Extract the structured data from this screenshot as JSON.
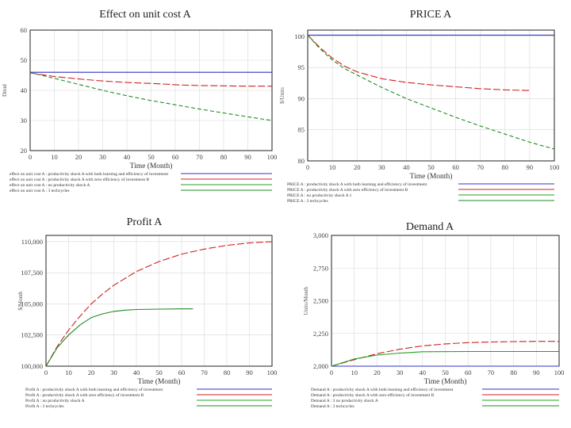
{
  "chart_data": [
    {
      "type": "line",
      "title": "Effect on unit cost A",
      "xlabel": "Time (Month)",
      "ylabel": "Dmnl",
      "xlim": [
        0,
        100
      ],
      "ylim": [
        20,
        60
      ],
      "x_ticks": [
        "0",
        "10",
        "20",
        "30",
        "40",
        "50",
        "60",
        "70",
        "80",
        "90",
        "100"
      ],
      "y_ticks": [
        {
          "v": 20,
          "label": "20"
        },
        {
          "v": 30,
          "label": "30"
        },
        {
          "v": 40,
          "label": "40"
        },
        {
          "v": 50,
          "label": "50"
        },
        {
          "v": 60,
          "label": "60"
        }
      ],
      "series": [
        {
          "name": "effect on unit cost A : productivity shock A with both learning and efficiency of investment",
          "color": "#3030c8",
          "dash": "",
          "points": [
            [
              0,
              46
            ],
            [
              100,
              46
            ]
          ]
        },
        {
          "name": "effect on unit cost A : productivity shock A with zero efficiency of investment B",
          "color": "#d02020",
          "dash": "9,3",
          "points": [
            [
              0,
              45.8
            ],
            [
              10,
              44.6
            ],
            [
              20,
              43.8
            ],
            [
              30,
              43.1
            ],
            [
              40,
              42.6
            ],
            [
              50,
              42.3
            ],
            [
              55,
              42.1
            ],
            [
              62,
              41.8
            ],
            [
              70,
              41.6
            ],
            [
              80,
              41.5
            ],
            [
              90,
              41.4
            ],
            [
              100,
              41.4
            ]
          ]
        },
        {
          "name": "effect on unit cost A : no productivity shock A",
          "color": "#20a020",
          "dash": "",
          "points": []
        },
        {
          "name": "effect on unit cost A : 3 techcycles",
          "color": "#208a20",
          "dash": "5,3",
          "points": [
            [
              0,
              45.9
            ],
            [
              10,
              44
            ],
            [
              20,
              42
            ],
            [
              30,
              40
            ],
            [
              40,
              38.2
            ],
            [
              50,
              36.6
            ],
            [
              60,
              35.2
            ],
            [
              70,
              33.8
            ],
            [
              80,
              32.5
            ],
            [
              90,
              31.2
            ],
            [
              100,
              30
            ]
          ]
        }
      ]
    },
    {
      "type": "line",
      "title": "PRICE A",
      "xlabel": "Time (Month)",
      "ylabel": "$/Units",
      "xlim": [
        0,
        100
      ],
      "ylim": [
        80,
        101
      ],
      "x_ticks": [
        "0",
        "10",
        "20",
        "30",
        "40",
        "50",
        "60",
        "70",
        "80",
        "90",
        "100"
      ],
      "y_ticks": [
        {
          "v": 80,
          "label": "80"
        },
        {
          "v": 85,
          "label": "85"
        },
        {
          "v": 90,
          "label": "90"
        },
        {
          "v": 95,
          "label": "95"
        },
        {
          "v": 100,
          "label": "100"
        }
      ],
      "series": [
        {
          "name": "PRICE A : productivity shock A with both learning and efficiency of investment",
          "color": "#3030c8",
          "dash": "",
          "points": [
            [
              0,
              100.2
            ],
            [
              100,
              100.2
            ]
          ]
        },
        {
          "name": "PRICE A : productivity shock A with zero efficiency of investment B",
          "color": "#d02020",
          "dash": "9,3",
          "points": [
            [
              0,
              100.2
            ],
            [
              5,
              98.2
            ],
            [
              10,
              96.5
            ],
            [
              15,
              95.2
            ],
            [
              20,
              94.3
            ],
            [
              30,
              93.2
            ],
            [
              40,
              92.6
            ],
            [
              50,
              92.2
            ],
            [
              60,
              91.9
            ],
            [
              70,
              91.6
            ],
            [
              80,
              91.4
            ],
            [
              90,
              91.3
            ]
          ]
        },
        {
          "name": "PRICE A : no productivity shock A 1",
          "color": "#20a020",
          "dash": "",
          "points": []
        },
        {
          "name": "PRICE A : 3 techcycles",
          "color": "#208a20",
          "dash": "5,3",
          "points": [
            [
              0,
              100.2
            ],
            [
              5,
              98
            ],
            [
              10,
              96.2
            ],
            [
              15,
              94.8
            ],
            [
              20,
              93.8
            ],
            [
              30,
              91.8
            ],
            [
              40,
              90
            ],
            [
              50,
              88.5
            ],
            [
              60,
              87
            ],
            [
              70,
              85.6
            ],
            [
              80,
              84.3
            ],
            [
              90,
              83
            ],
            [
              100,
              81.9
            ]
          ]
        }
      ]
    },
    {
      "type": "line",
      "title": "Profit A",
      "xlabel": "Time (Month)",
      "ylabel": "$/Month",
      "xlim": [
        0,
        100
      ],
      "ylim": [
        100000,
        110500
      ],
      "x_ticks": [
        "0",
        "10",
        "20",
        "30",
        "40",
        "50",
        "60",
        "70",
        "80",
        "90",
        "100"
      ],
      "y_ticks": [
        {
          "v": 100000,
          "label": "100,000"
        },
        {
          "v": 102500,
          "label": "102,500"
        },
        {
          "v": 105000,
          "label": "105,000"
        },
        {
          "v": 107500,
          "label": "107,500"
        },
        {
          "v": 110000,
          "label": "110,000"
        }
      ],
      "series": [
        {
          "name": "Profit A : productivity shock A with both learning and efficiency of investment",
          "color": "#3030c8",
          "dash": "",
          "points": []
        },
        {
          "name": "Profit A : productivity shock A with zero efficiency of investment B",
          "color": "#d02020",
          "dash": "9,3",
          "points": [
            [
              0,
              100000
            ],
            [
              5,
              101600
            ],
            [
              10,
              102900
            ],
            [
              15,
              104000
            ],
            [
              20,
              105000
            ],
            [
              25,
              105800
            ],
            [
              30,
              106500
            ],
            [
              40,
              107600
            ],
            [
              50,
              108400
            ],
            [
              60,
              109000
            ],
            [
              70,
              109400
            ],
            [
              80,
              109700
            ],
            [
              90,
              109900
            ],
            [
              100,
              110000
            ]
          ]
        },
        {
          "name": "Profit A : no productivity shock A",
          "color": "#20a020",
          "dash": "",
          "points": []
        },
        {
          "name": "Profit A : 3 techcycles",
          "color": "#208a20",
          "dash": "",
          "points": [
            [
              0,
              100000
            ],
            [
              5,
              101500
            ],
            [
              10,
              102500
            ],
            [
              15,
              103300
            ],
            [
              20,
              103900
            ],
            [
              25,
              104200
            ],
            [
              30,
              104400
            ],
            [
              35,
              104500
            ],
            [
              40,
              104550
            ],
            [
              50,
              104580
            ],
            [
              60,
              104600
            ],
            [
              65,
              104600
            ]
          ]
        }
      ]
    },
    {
      "type": "line",
      "title": "Demand A",
      "xlabel": "Time (Month)",
      "ylabel": "Units/Month",
      "xlim": [
        0,
        100
      ],
      "ylim": [
        2000,
        3000
      ],
      "x_ticks": [
        "0",
        "10",
        "20",
        "30",
        "40",
        "50",
        "60",
        "70",
        "80",
        "90",
        "100"
      ],
      "y_ticks": [
        {
          "v": 2000,
          "label": "2,000"
        },
        {
          "v": 2250,
          "label": "2,250"
        },
        {
          "v": 2500,
          "label": "2,500"
        },
        {
          "v": 2750,
          "label": "2,750"
        },
        {
          "v": 3000,
          "label": "3,000"
        }
      ],
      "series": [
        {
          "name": "Demand A : productivity shock A with both learning and efficiency of investment",
          "color": "#3030c8",
          "dash": "",
          "points": [
            [
              0,
              2000
            ],
            [
              100,
              2000
            ]
          ]
        },
        {
          "name": "Demand A : productivity shock A with zero efficiency of investment B",
          "color": "#d02020",
          "dash": "9,3",
          "points": [
            [
              0,
              2000
            ],
            [
              10,
              2050
            ],
            [
              20,
              2095
            ],
            [
              30,
              2130
            ],
            [
              40,
              2155
            ],
            [
              50,
              2170
            ],
            [
              60,
              2180
            ],
            [
              70,
              2185
            ],
            [
              80,
              2188
            ],
            [
              90,
              2190
            ],
            [
              100,
              2190
            ]
          ]
        },
        {
          "name": "Demand A : 3 no productivity shock A",
          "color": "#20a020",
          "dash": "",
          "points": [
            [
              0,
              2000
            ],
            [
              10,
              2055
            ],
            [
              20,
              2085
            ],
            [
              30,
              2100
            ],
            [
              40,
              2110
            ],
            [
              60,
              2112
            ],
            [
              80,
              2112
            ],
            [
              100,
              2112
            ]
          ]
        },
        {
          "name": "Demand A : 3 techcycles",
          "color": "#208a20",
          "dash": "",
          "points": []
        }
      ]
    }
  ]
}
